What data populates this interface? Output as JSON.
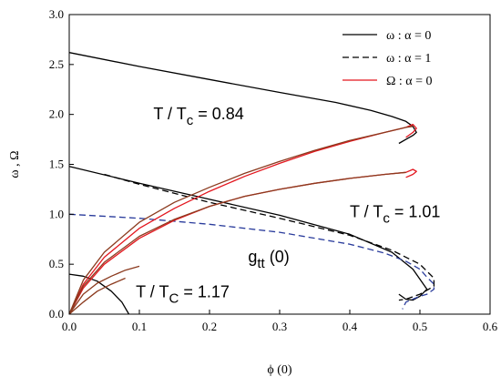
{
  "chart_data": {
    "type": "line",
    "title": "",
    "xlabel": "ϕ (0)",
    "ylabel": "ω , Ω",
    "xlim": [
      0,
      0.6
    ],
    "ylim": [
      0,
      3.0
    ],
    "x_ticks": [
      "0.0",
      "0.1",
      "0.2",
      "0.3",
      "0.4",
      "0.5",
      "0.6"
    ],
    "y_ticks": [
      "0.0",
      "0.5",
      "1.0",
      "1.5",
      "2.0",
      "2.5",
      "3.0"
    ],
    "grid": false,
    "legend_position": "top-right",
    "legend": [
      {
        "label": "ω : α = 0",
        "color": "#000000",
        "dash": "solid"
      },
      {
        "label": "ω : α = 1",
        "color": "#000000",
        "dash": "dashed"
      },
      {
        "label": "Ω : α = 0",
        "color": "#e3161e",
        "dash": "solid"
      }
    ],
    "annotations": [
      {
        "id": "t084",
        "base": "T / T",
        "sub": "c",
        "rest": " = 0.84",
        "x": 0.12,
        "y": 1.95
      },
      {
        "id": "t101",
        "base": "T / T",
        "sub": "c",
        "rest": " = 1.01",
        "x": 0.4,
        "y": 0.97
      },
      {
        "id": "t117",
        "base": "T / T",
        "sub": "C",
        "rest": " = 1.17",
        "x": 0.095,
        "y": 0.17
      },
      {
        "id": "gtt",
        "base": "g",
        "sub": "tt",
        "rest": " (0)",
        "x": 0.255,
        "y": 0.52
      }
    ],
    "series": [
      {
        "id": "omega-a0-084",
        "color": "#000000",
        "dash": "solid",
        "x": [
          0.0,
          0.1,
          0.2,
          0.3,
          0.38,
          0.43,
          0.46,
          0.48,
          0.49,
          0.495,
          0.49,
          0.48,
          0.47
        ],
        "y": [
          2.62,
          2.48,
          2.35,
          2.22,
          2.12,
          2.04,
          1.98,
          1.93,
          1.88,
          1.82,
          1.79,
          1.75,
          1.71
        ]
      },
      {
        "id": "omega-a0-101",
        "color": "#000000",
        "dash": "solid",
        "x": [
          0.0,
          0.1,
          0.2,
          0.3,
          0.4,
          0.46,
          0.49,
          0.5,
          0.51,
          0.5,
          0.49,
          0.48,
          0.47
        ],
        "y": [
          1.48,
          1.31,
          1.15,
          0.99,
          0.8,
          0.62,
          0.45,
          0.35,
          0.25,
          0.18,
          0.14,
          0.15,
          0.2
        ]
      },
      {
        "id": "omega-a1-101",
        "color": "#000000",
        "dash": "dashed",
        "x": [
          0.05,
          0.1,
          0.2,
          0.3,
          0.4,
          0.46,
          0.5,
          0.52,
          0.52,
          0.5,
          0.48,
          0.47
        ],
        "y": [
          1.4,
          1.3,
          1.12,
          0.96,
          0.79,
          0.64,
          0.5,
          0.36,
          0.28,
          0.2,
          0.15,
          0.14
        ]
      },
      {
        "id": "omega-a0-117",
        "color": "#000000",
        "dash": "solid",
        "x": [
          0.0,
          0.02,
          0.04,
          0.06,
          0.075,
          0.085
        ],
        "y": [
          0.4,
          0.38,
          0.33,
          0.23,
          0.12,
          0.0
        ]
      },
      {
        "id": "gtt-a1-101",
        "color": "#2a3c9c",
        "dash": "dashed",
        "x": [
          0.0,
          0.1,
          0.2,
          0.3,
          0.4,
          0.45,
          0.48,
          0.5,
          0.51,
          0.52,
          0.52,
          0.51,
          0.5,
          0.48,
          0.475
        ],
        "y": [
          1.0,
          0.96,
          0.9,
          0.82,
          0.7,
          0.61,
          0.53,
          0.45,
          0.37,
          0.3,
          0.25,
          0.2,
          0.18,
          0.12,
          0.05
        ]
      },
      {
        "id": "Omega-red-084",
        "color": "#e3161e",
        "dash": "solid",
        "x": [
          0.0,
          0.02,
          0.05,
          0.1,
          0.15,
          0.2,
          0.25,
          0.3,
          0.35,
          0.4,
          0.45,
          0.48,
          0.49,
          0.495,
          0.49,
          0.48
        ],
        "y": [
          0.0,
          0.3,
          0.57,
          0.86,
          1.06,
          1.23,
          1.38,
          1.51,
          1.63,
          1.73,
          1.82,
          1.87,
          1.9,
          1.86,
          1.82,
          1.77
        ]
      },
      {
        "id": "Omega-red-101",
        "color": "#e3161e",
        "dash": "solid",
        "x": [
          0.0,
          0.02,
          0.05,
          0.1,
          0.15,
          0.2,
          0.25,
          0.3,
          0.35,
          0.4,
          0.45,
          0.48,
          0.49,
          0.495,
          0.49,
          0.48
        ],
        "y": [
          0.0,
          0.26,
          0.5,
          0.76,
          0.94,
          1.08,
          1.18,
          1.25,
          1.31,
          1.36,
          1.4,
          1.42,
          1.45,
          1.43,
          1.4,
          1.37
        ]
      },
      {
        "id": "brown-0",
        "color": "#8b3a1e",
        "dash": "solid",
        "x": [
          0.0,
          0.02,
          0.05,
          0.1,
          0.15,
          0.2,
          0.25,
          0.3,
          0.35,
          0.4,
          0.45,
          0.48,
          0.49
        ],
        "y": [
          0.0,
          0.34,
          0.62,
          0.92,
          1.12,
          1.27,
          1.41,
          1.53,
          1.64,
          1.74,
          1.82,
          1.87,
          1.88
        ]
      },
      {
        "id": "brown-1",
        "color": "#8b3a1e",
        "dash": "solid",
        "x": [
          0.0,
          0.02,
          0.05,
          0.1,
          0.15,
          0.2,
          0.25,
          0.3,
          0.35,
          0.4,
          0.45,
          0.48
        ],
        "y": [
          0.0,
          0.28,
          0.52,
          0.78,
          0.95,
          1.08,
          1.18,
          1.25,
          1.31,
          1.36,
          1.4,
          1.42
        ]
      },
      {
        "id": "brown-2",
        "color": "#8b3a1e",
        "dash": "solid",
        "x": [
          0.0,
          0.02,
          0.04,
          0.06,
          0.08,
          0.1
        ],
        "y": [
          0.0,
          0.2,
          0.31,
          0.38,
          0.44,
          0.48
        ]
      },
      {
        "id": "brown-3",
        "color": "#8b3a1e",
        "dash": "solid",
        "x": [
          0.0,
          0.02,
          0.04,
          0.06,
          0.08
        ],
        "y": [
          0.0,
          0.12,
          0.23,
          0.3,
          0.36
        ]
      }
    ]
  }
}
